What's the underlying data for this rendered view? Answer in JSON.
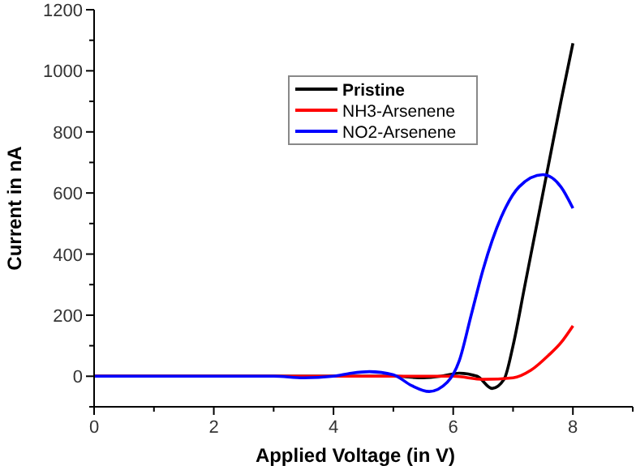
{
  "chart_data": {
    "type": "line",
    "xlabel": "Applied Voltage (in V)",
    "ylabel": "Current in nA",
    "xlim": [
      0,
      9
    ],
    "ylim": [
      -100,
      1200
    ],
    "xticks": [
      0,
      {
        "value": 1,
        "label": null
      },
      2,
      {
        "value": 3,
        "label": null
      },
      4,
      {
        "value": 5,
        "label": null
      },
      6,
      {
        "value": 7,
        "label": null
      },
      8,
      {
        "value": 9,
        "label": null
      }
    ],
    "yticks": [
      {
        "value": -100,
        "label": null
      },
      0,
      {
        "value": 100,
        "label": null
      },
      200,
      {
        "value": 300,
        "label": null
      },
      400,
      {
        "value": 500,
        "label": null
      },
      600,
      {
        "value": 700,
        "label": null
      },
      800,
      {
        "value": 900,
        "label": null
      },
      1000,
      {
        "value": 1100,
        "label": null
      },
      1200
    ],
    "legend": "top right",
    "grid": false,
    "marker": "none",
    "line_style": "solid",
    "series": [
      {
        "name": "Pristine",
        "color": "#000000",
        "x": [
          0,
          2,
          4,
          5,
          5.5,
          5.8,
          6.1,
          6.4,
          6.65,
          6.85,
          7,
          7.2,
          7.4,
          7.6,
          7.8,
          8
        ],
        "values": [
          0,
          0,
          0,
          0,
          -5,
          0,
          10,
          0,
          -40,
          -10,
          100,
          300,
          500,
          700,
          900,
          1090
        ]
      },
      {
        "name": "NH3-Arsenene",
        "color": "#ff0000",
        "x": [
          0,
          2,
          4,
          6,
          6.5,
          7,
          7.3,
          7.6,
          7.8,
          8
        ],
        "values": [
          0,
          0,
          0,
          0,
          -10,
          -5,
          20,
          70,
          110,
          165
        ]
      },
      {
        "name": "NO2-Arsenene",
        "color": "#0000ff",
        "x": [
          0,
          3,
          3.5,
          4,
          4.3,
          4.6,
          5,
          5.3,
          5.6,
          5.9,
          6.1,
          6.3,
          6.5,
          6.8,
          7.1,
          7.5,
          7.8,
          8
        ],
        "values": [
          0,
          0,
          -5,
          0,
          10,
          15,
          5,
          -30,
          -50,
          -20,
          50,
          200,
          350,
          520,
          620,
          660,
          620,
          550
        ]
      }
    ]
  }
}
